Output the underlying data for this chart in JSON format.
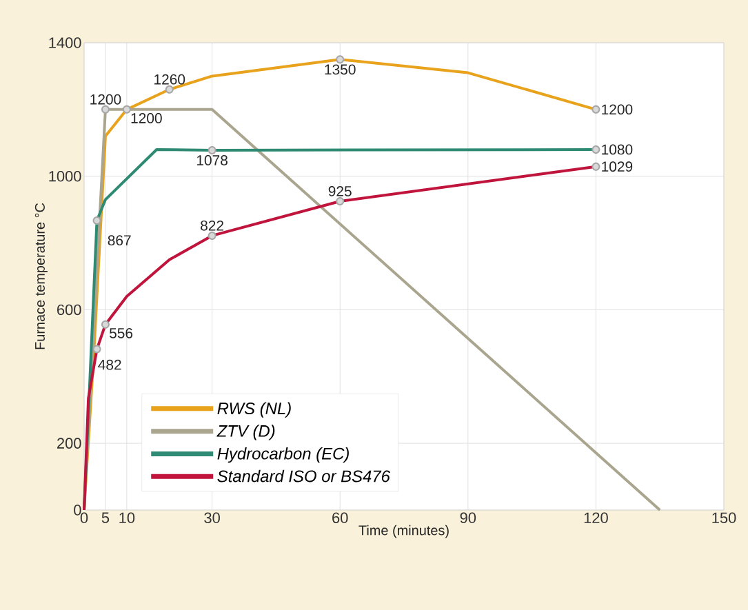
{
  "chart_data": {
    "type": "line",
    "xlabel": "Time (minutes)",
    "ylabel": "Furnace temperature °C",
    "xlim": [
      0,
      150
    ],
    "xticks": [
      0,
      5,
      10,
      30,
      60,
      90,
      120,
      150
    ],
    "ylim": [
      0,
      1400
    ],
    "yticks": [
      0,
      200,
      600,
      1000,
      1400
    ],
    "grid": true,
    "legend": "bottom left",
    "line_style": "solid",
    "series": [
      {
        "name": "*RWS (NL)*",
        "color": "#e8a21c",
        "x": [
          0,
          2.2,
          5,
          10,
          20,
          30,
          60,
          90,
          120
        ],
        "values": [
          0,
          450,
          1120,
          1200,
          1260,
          1300,
          1350,
          1310,
          1200
        ]
      },
      {
        "name": "*ZTV (D)*",
        "color": "#aaa58e",
        "x": [
          0,
          5,
          30,
          135
        ],
        "values": [
          0,
          1200,
          1200,
          0
        ]
      },
      {
        "name": "*Hydrocarbon (EC)*",
        "color": "#2e8a72",
        "x": [
          0,
          3,
          5,
          17,
          30,
          120
        ],
        "values": [
          0,
          867,
          930,
          1080,
          1078,
          1080
        ]
      },
      {
        "name": "*Standard ISO or BS476*",
        "color": "#c0143c",
        "x": [
          0,
          1,
          3,
          5,
          10,
          15,
          20,
          30,
          60,
          120
        ],
        "values": [
          0,
          335,
          482,
          556,
          640,
          695,
          750,
          822,
          925,
          1029
        ]
      }
    ],
    "annotations": [
      {
        "text": "1200",
        "x": 5,
        "y": 1200
      },
      {
        "text": "1260",
        "x": 20,
        "y": 1260
      },
      {
        "text": "1200",
        "x": 10,
        "y": 1200
      },
      {
        "text": "1350",
        "x": 60,
        "y": 1350
      },
      {
        "text": "1200",
        "x": 120,
        "y": 1200
      },
      {
        "text": "1080",
        "x": 120,
        "y": 1080
      },
      {
        "text": "1029",
        "x": 120,
        "y": 1029
      },
      {
        "text": "1078",
        "x": 30,
        "y": 1078
      },
      {
        "text": "867",
        "x": 3,
        "y": 867
      },
      {
        "text": "822",
        "x": 30,
        "y": 822
      },
      {
        "text": "925",
        "x": 60,
        "y": 925
      },
      {
        "text": "556",
        "x": 5,
        "y": 556
      },
      {
        "text": "482",
        "x": 3,
        "y": 482
      }
    ]
  }
}
